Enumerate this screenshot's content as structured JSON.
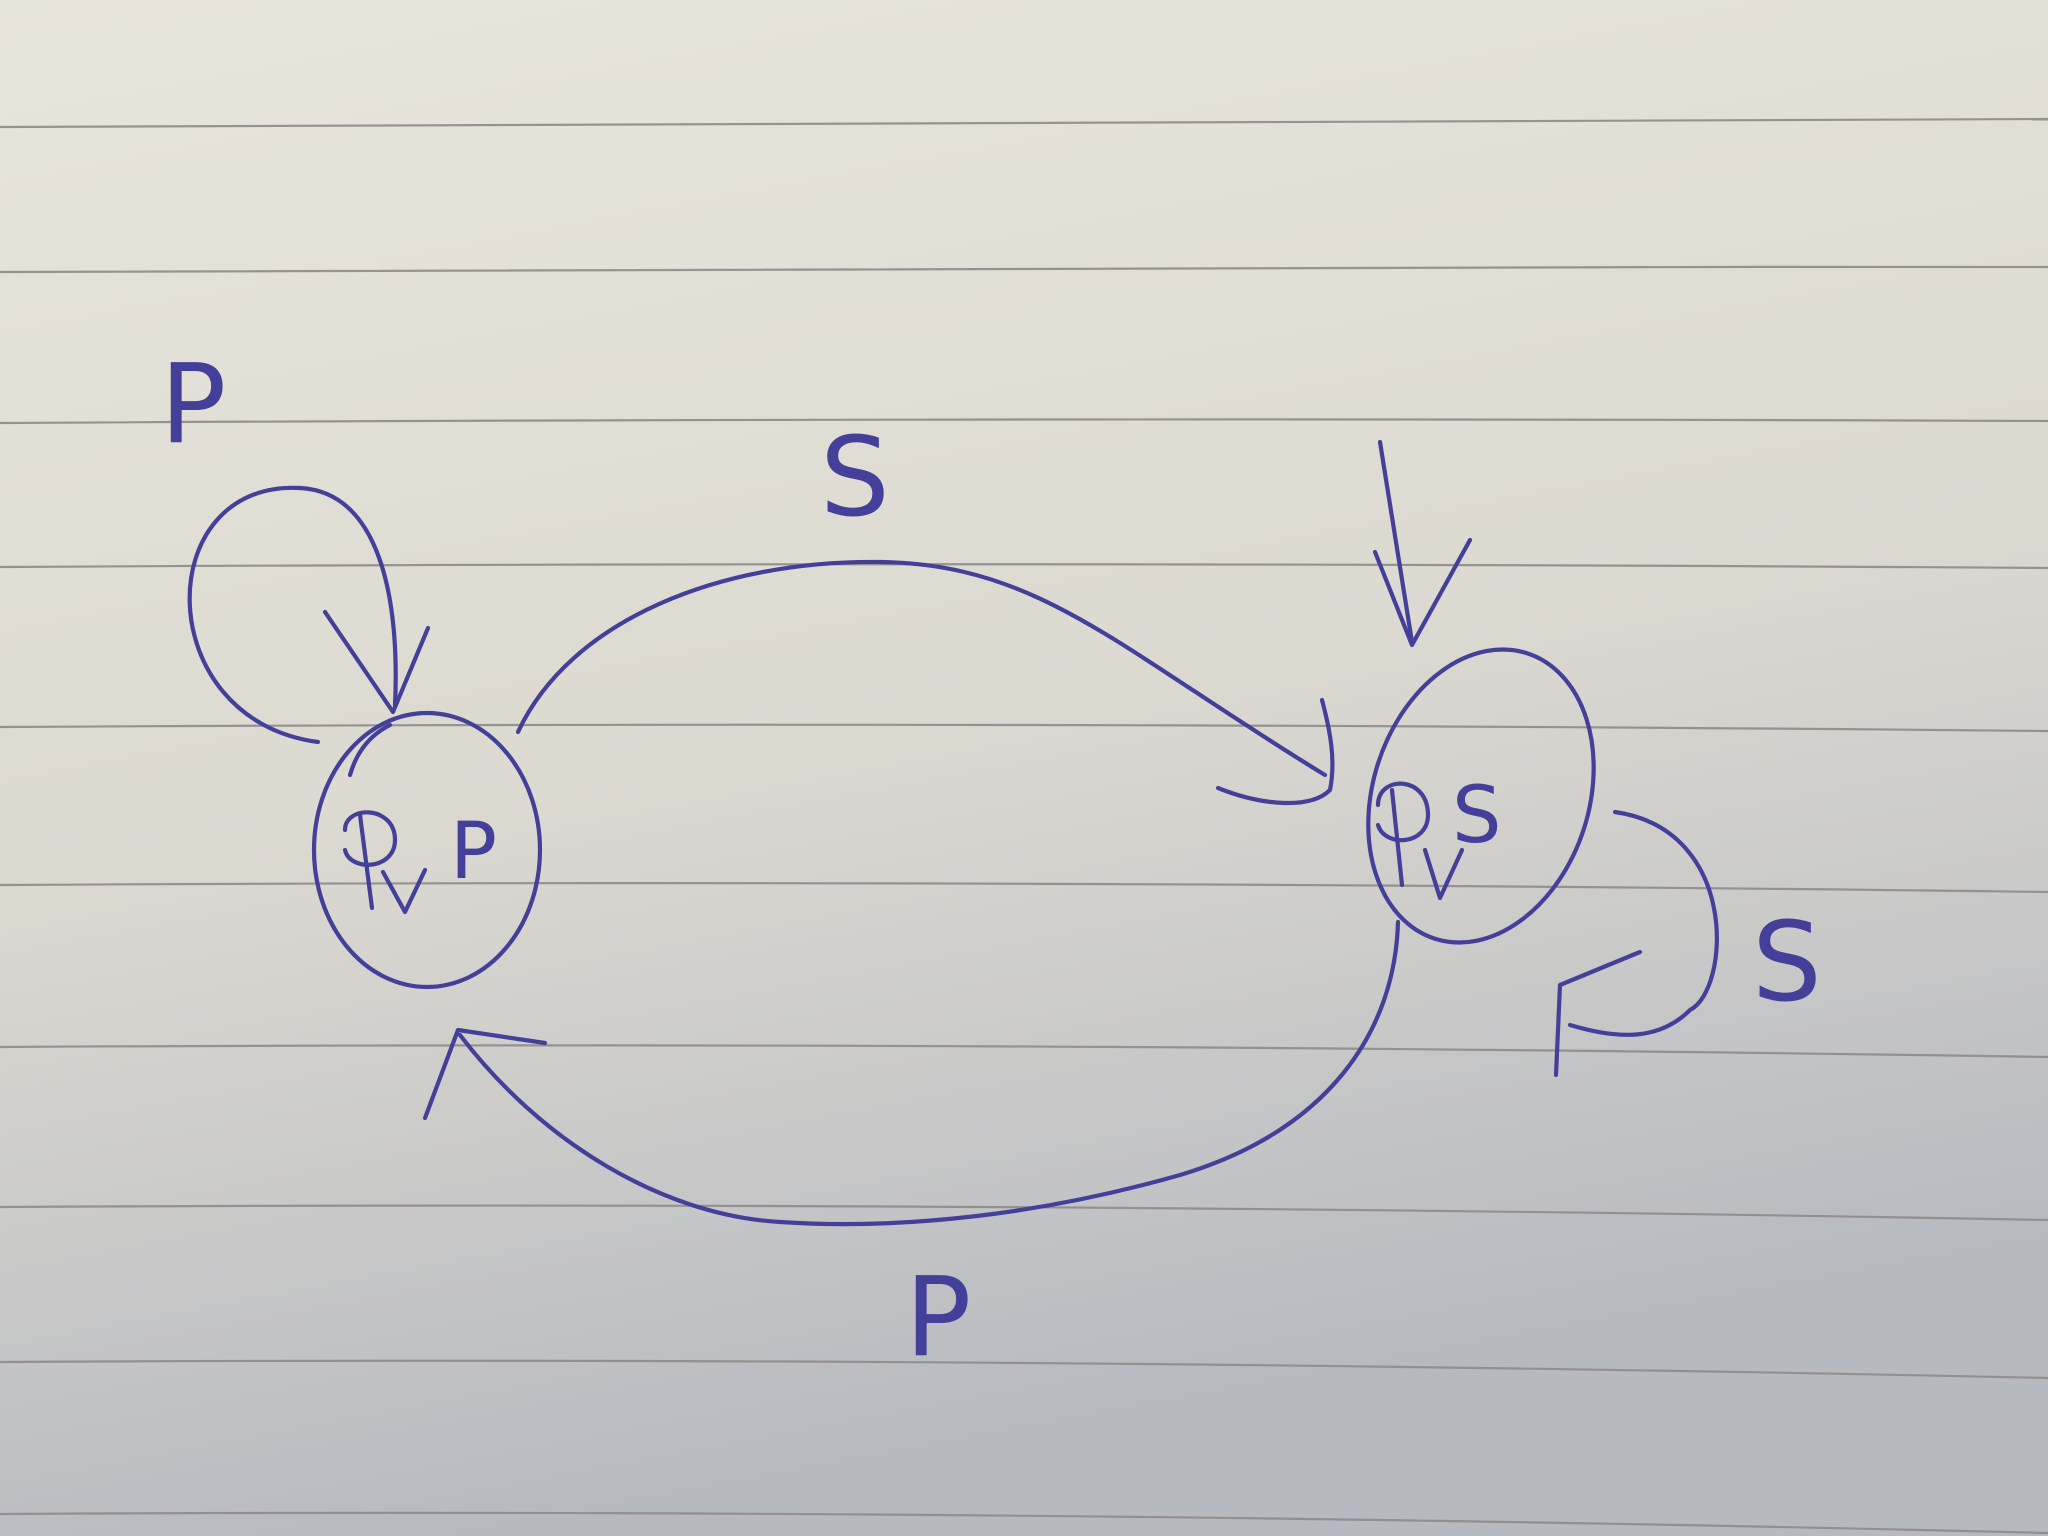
{
  "ink_color": "#44409a",
  "paper": {
    "top_color": "#e6e3da",
    "bottom_color": "#b9bcc2",
    "rule_color": "#8f8a8b"
  },
  "diagram": {
    "nodes": [
      {
        "id": "left",
        "symbol": "φ",
        "label": "P",
        "initial_arrow": true
      },
      {
        "id": "right",
        "symbol": "φ",
        "label": "S",
        "initial_arrow": true
      }
    ],
    "edges": [
      {
        "from": "left",
        "to": "left",
        "label": "P"
      },
      {
        "from": "left",
        "to": "right",
        "label": "S"
      },
      {
        "from": "right",
        "to": "right",
        "label": "S"
      },
      {
        "from": "right",
        "to": "left",
        "label": "P"
      }
    ]
  }
}
